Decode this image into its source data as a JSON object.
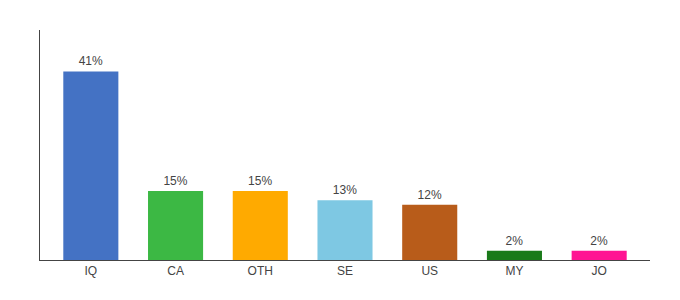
{
  "chart_data": {
    "type": "bar",
    "categories": [
      "IQ",
      "CA",
      "OTH",
      "SE",
      "US",
      "MY",
      "JO"
    ],
    "values": [
      41,
      15,
      15,
      13,
      12,
      2,
      2
    ],
    "value_labels": [
      "41%",
      "15%",
      "15%",
      "13%",
      "12%",
      "2%",
      "2%"
    ],
    "colors": [
      "#4472c4",
      "#3cb844",
      "#ffaa00",
      "#7ec8e3",
      "#b85c1a",
      "#1a7a1a",
      "#ff1493"
    ],
    "data_labels": true,
    "ylim": [
      0,
      50
    ],
    "grid": false,
    "tick_labels": "x"
  }
}
